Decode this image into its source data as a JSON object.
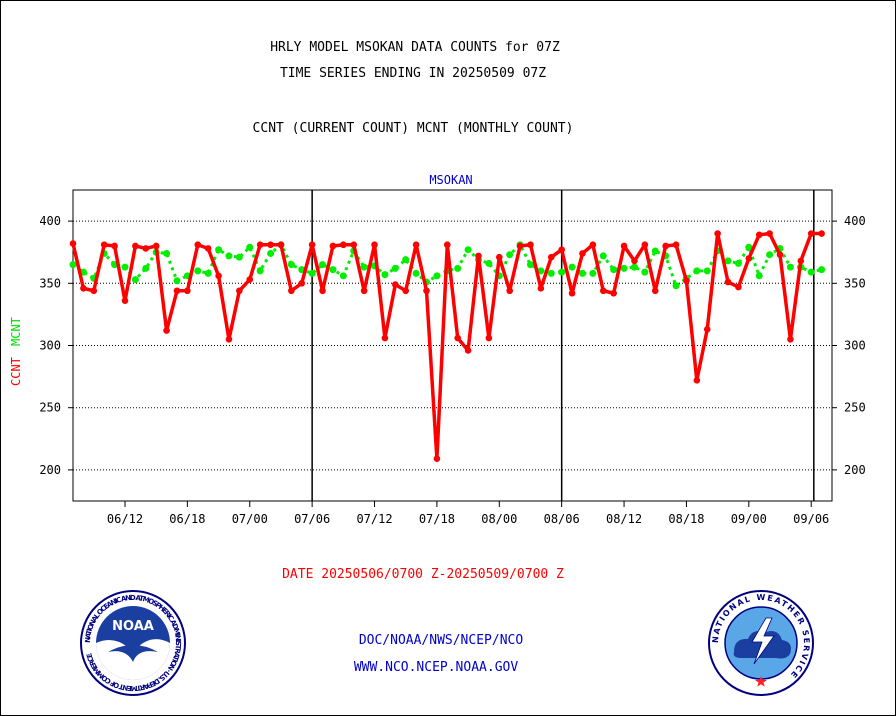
{
  "header": {
    "title_line1": "HRLY MODEL MSOKAN DATA COUNTS for 07Z",
    "title_line2": "TIME SERIES ENDING IN 20250509 07Z",
    "subtitle": "CCNT (CURRENT COUNT) MCNT (MONTHLY COUNT)"
  },
  "footer": {
    "date_range": "DATE 20250506/0700 Z-20250509/0700 Z",
    "link1": "DOC/NOAA/NWS/NCEP/NCO",
    "link2": "WWW.NCO.NCEP.NOAA.GOV"
  },
  "logos": {
    "noaa": {
      "name": "NOAA",
      "ring_text": "NATIONAL OCEANIC AND ATMOSPHERIC ADMINISTRATION · U.S. DEPARTMENT OF COMMERCE"
    },
    "nws": {
      "ring_text": "NATIONAL WEATHER SERVICE"
    }
  },
  "colors": {
    "ccnt": "#ff0000",
    "mcnt": "#00ee00",
    "plot_label": "#0000cc",
    "axis": "#000000"
  },
  "chart_data": {
    "type": "line",
    "plot_label": "MSOKAN",
    "ylabel_ccnt": "CCNT",
    "ylabel_mcnt": "MCNT",
    "ylim": [
      175,
      425
    ],
    "yticks": [
      200,
      250,
      300,
      350,
      400
    ],
    "x_range": [
      0,
      73
    ],
    "xticks": [
      {
        "x": 5,
        "label": "06/12"
      },
      {
        "x": 11,
        "label": "06/18"
      },
      {
        "x": 17,
        "label": "07/00"
      },
      {
        "x": 23,
        "label": "07/06"
      },
      {
        "x": 29,
        "label": "07/12"
      },
      {
        "x": 35,
        "label": "07/18"
      },
      {
        "x": 41,
        "label": "08/00"
      },
      {
        "x": 47,
        "label": "08/06"
      },
      {
        "x": 53,
        "label": "08/12"
      },
      {
        "x": 59,
        "label": "08/18"
      },
      {
        "x": 65,
        "label": "09/00"
      },
      {
        "x": 71,
        "label": "09/06"
      }
    ],
    "day_lines_x": [
      23,
      47,
      71.25
    ],
    "grid": true,
    "series": [
      {
        "name": "CCNT",
        "values": [
          382,
          346,
          344,
          381,
          380,
          336,
          380,
          378,
          380,
          312,
          344,
          344,
          381,
          378,
          356,
          305,
          344,
          353,
          381,
          381,
          381,
          344,
          350,
          381,
          344,
          380,
          381,
          381,
          344,
          381,
          306,
          349,
          344,
          381,
          344,
          209,
          381,
          306,
          296,
          372,
          306,
          371,
          344,
          380,
          381,
          346,
          371,
          377,
          342,
          374,
          381,
          344,
          342,
          380,
          368,
          381,
          344,
          380,
          381,
          352,
          272,
          313,
          390,
          351,
          347,
          370,
          389,
          390,
          373,
          305,
          368,
          390,
          390
        ]
      },
      {
        "name": "MCNT",
        "values": [
          365,
          359,
          354,
          374,
          365,
          363,
          353,
          362,
          375,
          374,
          352,
          356,
          360,
          358,
          377,
          372,
          371,
          379,
          360,
          374,
          381,
          365,
          361,
          358,
          365,
          361,
          356,
          376,
          363,
          364,
          357,
          362,
          369,
          358,
          351,
          356,
          360,
          362,
          377,
          369,
          366,
          356,
          373,
          381,
          365,
          360,
          358,
          359,
          363,
          358,
          358,
          372,
          361,
          362,
          363,
          359,
          376,
          372,
          348,
          354,
          360,
          360,
          376,
          368,
          366,
          379,
          356,
          373,
          378,
          363,
          363,
          359,
          361
        ]
      }
    ]
  }
}
